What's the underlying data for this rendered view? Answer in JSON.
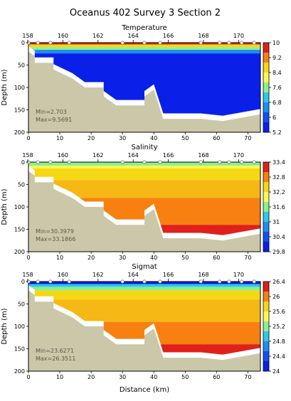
{
  "figure": {
    "title": "Oceanus 402 Survey 3 Section 2",
    "xlabel": "Distance (km)"
  },
  "colors": {
    "terrain": "#cbc7a9",
    "nodata": "#ffffff",
    "station": "#ffffff",
    "min_max_text": "#5a5a48"
  },
  "chart_data": [
    {
      "type": "heatmap",
      "title": "Temperature",
      "ylabel": "Depth (m)",
      "xlim": [
        0,
        74
      ],
      "ylim": [
        200,
        0
      ],
      "x_ticks": [
        0,
        10,
        20,
        30,
        40,
        50,
        60,
        70
      ],
      "y_ticks": [
        0,
        50,
        100,
        150,
        200
      ],
      "station_ticks": [
        "158",
        "160",
        "162",
        "164",
        "166",
        "168",
        "170"
      ],
      "stations_km": [
        0,
        3,
        7,
        13,
        30,
        37,
        42,
        55,
        61,
        64,
        68,
        72
      ],
      "colorbar": {
        "labels": [
          "10",
          "9.2",
          "8.4",
          "7.6",
          "6.8",
          "6",
          "5.2"
        ],
        "colors": [
          "#e0201a",
          "#f88010",
          "#f5d814",
          "#fafa50",
          "#8cf090",
          "#30c8e8",
          "#1e8ef0",
          "#1250f0",
          "#0a20e8"
        ]
      },
      "layers": [
        {
          "top": 0,
          "bottom": 4,
          "color": "#e0201a"
        },
        {
          "top": 4,
          "bottom": 10,
          "color": "#f5d814"
        },
        {
          "top": 10,
          "bottom": 16,
          "color": "#8cf090"
        },
        {
          "top": 16,
          "bottom": 24,
          "color": "#1e8ef0"
        },
        {
          "top": 24,
          "bottom": 200,
          "color": "#0a20e8"
        }
      ],
      "min_label": "Min=2.703",
      "max_label": "Max=9.5691"
    },
    {
      "type": "heatmap",
      "title": "Salinity",
      "ylabel": "Depth (m)",
      "xlim": [
        0,
        74
      ],
      "ylim": [
        200,
        0
      ],
      "x_ticks": [
        0,
        10,
        20,
        30,
        40,
        50,
        60,
        70
      ],
      "y_ticks": [
        0,
        50,
        100,
        150,
        200
      ],
      "station_ticks": [
        "158",
        "160",
        "162",
        "164",
        "166",
        "168",
        "170"
      ],
      "stations_km": [
        0,
        3,
        7,
        13,
        30,
        37,
        42,
        55,
        61,
        64,
        68,
        72
      ],
      "colorbar": {
        "labels": [
          "33.4",
          "32.8",
          "32.2",
          "31.6",
          "31",
          "30.4",
          "29.8"
        ],
        "colors": [
          "#e0201a",
          "#f88010",
          "#f5d814",
          "#fafa50",
          "#8cf090",
          "#30c8e8",
          "#1e8ef0",
          "#1250f0",
          "#0a20e8"
        ]
      },
      "layers": [
        {
          "top": 0,
          "bottom": 8,
          "color": "#8cf090"
        },
        {
          "top": 8,
          "bottom": 14,
          "color": "#fafa50"
        },
        {
          "top": 14,
          "bottom": 40,
          "color": "#f5d814"
        },
        {
          "top": 40,
          "bottom": 80,
          "color": "#f5b814"
        },
        {
          "top": 80,
          "bottom": 140,
          "color": "#f88010"
        },
        {
          "top": 140,
          "bottom": 200,
          "color": "#e0201a"
        }
      ],
      "min_label": "Min=30.3979",
      "max_label": "Max=33.1866"
    },
    {
      "type": "heatmap",
      "title": "Sigmat",
      "ylabel": "Depth (m)",
      "xlabel": "Distance (km)",
      "xlim": [
        0,
        74
      ],
      "ylim": [
        200,
        0
      ],
      "x_ticks": [
        0,
        10,
        20,
        30,
        40,
        50,
        60,
        70
      ],
      "y_ticks": [
        0,
        50,
        100,
        150,
        200
      ],
      "station_ticks": [
        "158",
        "160",
        "162",
        "164",
        "166",
        "168",
        "170"
      ],
      "stations_km": [
        0,
        3,
        7,
        13,
        30,
        37,
        42,
        55,
        61,
        64,
        68,
        72
      ],
      "colorbar": {
        "labels": [
          "26.4",
          "26",
          "25.6",
          "25.2",
          "24.8",
          "24.4",
          "24"
        ],
        "colors": [
          "#e0201a",
          "#f88010",
          "#f5d814",
          "#fafa50",
          "#8cf090",
          "#30c8e8",
          "#1e8ef0",
          "#1250f0",
          "#0a20e8"
        ]
      },
      "layers": [
        {
          "top": 0,
          "bottom": 6,
          "color": "#0a20e8"
        },
        {
          "top": 6,
          "bottom": 12,
          "color": "#30c8e8"
        },
        {
          "top": 12,
          "bottom": 20,
          "color": "#8cf090"
        },
        {
          "top": 20,
          "bottom": 40,
          "color": "#f5d814"
        },
        {
          "top": 40,
          "bottom": 90,
          "color": "#f5b814"
        },
        {
          "top": 90,
          "bottom": 140,
          "color": "#f88010"
        },
        {
          "top": 140,
          "bottom": 200,
          "color": "#e0201a"
        }
      ],
      "min_label": "Min=23.6271",
      "max_label": "Max=26.3511"
    }
  ],
  "bathymetry": {
    "x": [
      0,
      2,
      2,
      8,
      8,
      14,
      18,
      24,
      24,
      28,
      30,
      30,
      37,
      37,
      40,
      43,
      43,
      55,
      55,
      62,
      74
    ],
    "depth": [
      20,
      30,
      45,
      45,
      60,
      80,
      100,
      100,
      120,
      140,
      140,
      140,
      140,
      120,
      105,
      170,
      170,
      170,
      170,
      175,
      160
    ]
  }
}
